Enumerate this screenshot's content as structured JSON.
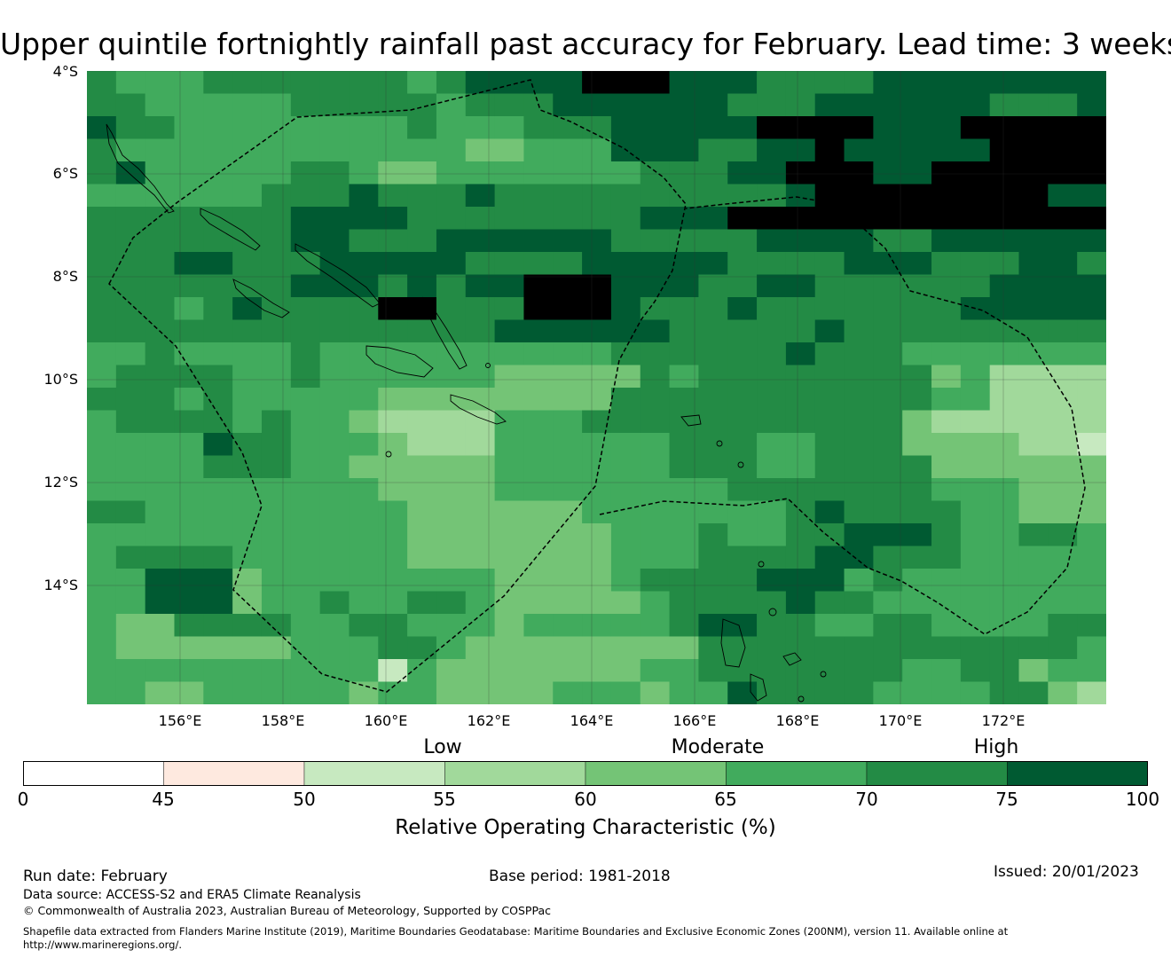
{
  "title": "Upper quintile fortnightly rainfall past accuracy for February. Lead time: 3 weeks",
  "map": {
    "lat_labels": [
      "4°S",
      "6°S",
      "8°S",
      "10°S",
      "12°S",
      "14°S"
    ],
    "lon_labels": [
      "156°E",
      "158°E",
      "160°E",
      "162°E",
      "164°E",
      "166°E",
      "168°E",
      "170°E",
      "172°E"
    ],
    "lon_range": [
      154.2,
      174.0
    ],
    "lat_range": [
      -3.9,
      -16.2
    ],
    "grid_origin": {
      "lon": 154.2,
      "lat": -3.9
    },
    "cell_size_deg": [
      0.835,
      0.55
    ],
    "grid": [
      "65556666666567777888777666677777777",
      "66555556666656667777776667777776667",
      "76655555555655566677777888877788888",
      "65555555555554455577766778777778888",
      "67555556654455555556667788877888888",
      "55555566676667666666666678888888877",
      "66666667777666666667778888888888888",
      "66666667766677777766666777766777777",
      "66677666777776666777776666777666776",
      "66666667776767788877766776666667777",
      "66656766668866688876667666666677777",
      "66666666666666777777666667666666666",
      "55655556555555555566666676665555555",
      "56666556555555444446566666666453333",
      "66656555554444444466666666666553333",
      "56666565543333555666666666664333333",
      "55557665554333555555666556664444332",
      "55556665544444555555666556666444444",
      "55555555554444555555556666666555444",
      "66555555555444444555555567666655444",
      "55555555555444444455565566777655665",
      "56666555555444444455566667766655555",
      "55777455555555444456666777565555555",
      "55777455655665444445666676655555555",
      "54466665566555455555677665566555566",
      "54444445556654444444466666666666665",
      "55555555552544444445566666665566455",
      "55445555545544445554557666655556643"
    ],
    "color_scale": [
      "#ffffff",
      "#fee9df",
      "#c7e9c0",
      "#a1d99b",
      "#74c476",
      "#41ab5d",
      "#238b45",
      "#005a32"
    ]
  },
  "categories": [
    "Low",
    "Moderate",
    "High"
  ],
  "colorbar": {
    "ticks": [
      "0",
      "45",
      "50",
      "55",
      "60",
      "65",
      "70",
      "75",
      "100"
    ],
    "colors": [
      "#ffffff",
      "#fee9df",
      "#c7e9c0",
      "#a1d99b",
      "#74c476",
      "#41ab5d",
      "#238b45",
      "#005a32"
    ],
    "label": "Relative Operating Characteristic (%)"
  },
  "footer": {
    "run_date": "Run date: February",
    "base_period": "Base period: 1981-2018",
    "issued": "Issued: 20/01/2023",
    "data_source": "Data source: ACCESS-S2 and ERA5 Climate Reanalysis",
    "copyright": "© Commonwealth of Australia 2023, Australian Bureau of Meteorology, Supported by COSPPac",
    "shapefile": "Shapefile data extracted from Flanders Marine Institute (2019), Maritime Boundaries Geodatabase: Maritime Boundaries and Exclusive Economic Zones (200NM), version 11. Available online at",
    "url": "http://www.marineregions.org/."
  }
}
